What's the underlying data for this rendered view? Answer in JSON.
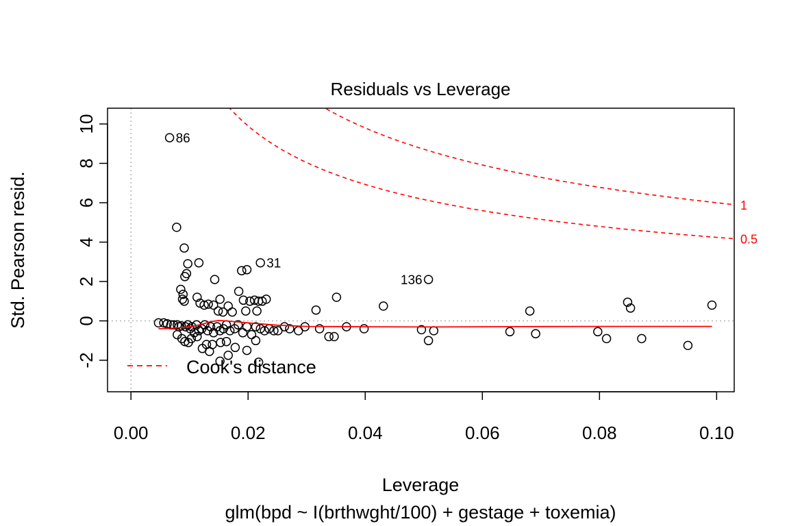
{
  "chart_data": {
    "type": "scatter",
    "title": "Residuals vs Leverage",
    "xlabel": "Leverage",
    "subtitle": "glm(bpd ~ I(brthwght/100) + gestage + toxemia)",
    "ylabel": "Std. Pearson resid.",
    "xlim": [
      -0.004,
      0.103
    ],
    "ylim": [
      -3.6,
      10.8
    ],
    "x_ticks": [
      0.0,
      0.02,
      0.04,
      0.06,
      0.08,
      0.1
    ],
    "x_tick_labels": [
      "0.00",
      "0.02",
      "0.04",
      "0.06",
      "0.08",
      "0.10"
    ],
    "y_ticks": [
      -2,
      0,
      2,
      4,
      6,
      8,
      10
    ],
    "y_tick_labels": [
      "-2",
      "0",
      "2",
      "4",
      "6",
      "8",
      "10"
    ],
    "reference_lines": {
      "x": 0,
      "y": 0
    },
    "points": [
      [
        0.0066,
        9.3
      ],
      [
        0.0078,
        4.75
      ],
      [
        0.0091,
        3.7
      ],
      [
        0.0097,
        2.9
      ],
      [
        0.0116,
        2.95
      ],
      [
        0.0095,
        2.4
      ],
      [
        0.0092,
        2.25
      ],
      [
        0.0143,
        2.1
      ],
      [
        0.0189,
        2.55
      ],
      [
        0.0198,
        2.6
      ],
      [
        0.0221,
        2.95
      ],
      [
        0.0508,
        2.1
      ],
      [
        0.0085,
        1.6
      ],
      [
        0.0089,
        1.35
      ],
      [
        0.0088,
        1.1
      ],
      [
        0.0091,
        1.0
      ],
      [
        0.0113,
        1.2
      ],
      [
        0.0118,
        0.9
      ],
      [
        0.0125,
        0.8
      ],
      [
        0.0132,
        0.85
      ],
      [
        0.0141,
        0.8
      ],
      [
        0.0152,
        1.1
      ],
      [
        0.0166,
        0.75
      ],
      [
        0.0184,
        1.5
      ],
      [
        0.0192,
        1.05
      ],
      [
        0.0203,
        1.0
      ],
      [
        0.0211,
        1.05
      ],
      [
        0.0218,
        1.0
      ],
      [
        0.0224,
        1.0
      ],
      [
        0.0231,
        1.1
      ],
      [
        0.0149,
        0.5
      ],
      [
        0.0157,
        0.45
      ],
      [
        0.0173,
        0.45
      ],
      [
        0.0196,
        0.5
      ],
      [
        0.0215,
        0.5
      ],
      [
        0.0316,
        0.55
      ],
      [
        0.0351,
        1.2
      ],
      [
        0.0431,
        0.75
      ],
      [
        0.0681,
        0.5
      ],
      [
        0.0848,
        0.95
      ],
      [
        0.0853,
        0.65
      ],
      [
        0.0992,
        0.8
      ],
      [
        0.0047,
        -0.1
      ],
      [
        0.0056,
        -0.1
      ],
      [
        0.0062,
        -0.15
      ],
      [
        0.0068,
        -0.2
      ],
      [
        0.0073,
        -0.2
      ],
      [
        0.0079,
        -0.2
      ],
      [
        0.0082,
        -0.3
      ],
      [
        0.0086,
        -0.25
      ],
      [
        0.0093,
        -0.3
      ],
      [
        0.0097,
        -0.2
      ],
      [
        0.0101,
        -0.4
      ],
      [
        0.0104,
        -0.3
      ],
      [
        0.0108,
        -0.6
      ],
      [
        0.0112,
        -0.2
      ],
      [
        0.0116,
        -0.5
      ],
      [
        0.0121,
        -0.4
      ],
      [
        0.0126,
        -0.2
      ],
      [
        0.0131,
        -0.5
      ],
      [
        0.0136,
        -0.3
      ],
      [
        0.0141,
        -0.6
      ],
      [
        0.0147,
        -0.3
      ],
      [
        0.0152,
        -0.5
      ],
      [
        0.0158,
        -0.4
      ],
      [
        0.0163,
        -0.2
      ],
      [
        0.0169,
        -0.5
      ],
      [
        0.0177,
        -0.4
      ],
      [
        0.0183,
        -0.2
      ],
      [
        0.0191,
        -0.6
      ],
      [
        0.0198,
        -0.3
      ],
      [
        0.0206,
        -0.7
      ],
      [
        0.0213,
        -0.3
      ],
      [
        0.0221,
        -0.4
      ],
      [
        0.0228,
        -0.5
      ],
      [
        0.0236,
        -0.4
      ],
      [
        0.0244,
        -0.5
      ],
      [
        0.0251,
        -0.5
      ],
      [
        0.0262,
        -0.3
      ],
      [
        0.0271,
        -0.4
      ],
      [
        0.0286,
        -0.5
      ],
      [
        0.0297,
        -0.3
      ],
      [
        0.0322,
        -0.4
      ],
      [
        0.0338,
        -0.8
      ],
      [
        0.0347,
        -0.8
      ],
      [
        0.0368,
        -0.3
      ],
      [
        0.0398,
        -0.4
      ],
      [
        0.0496,
        -0.45
      ],
      [
        0.0508,
        -1.0
      ],
      [
        0.0517,
        -0.5
      ],
      [
        0.0647,
        -0.55
      ],
      [
        0.0691,
        -0.65
      ],
      [
        0.0797,
        -0.55
      ],
      [
        0.0812,
        -0.9
      ],
      [
        0.0872,
        -0.9
      ],
      [
        0.0951,
        -1.25
      ],
      [
        0.0079,
        -0.7
      ],
      [
        0.0087,
        -0.9
      ],
      [
        0.0092,
        -1.05
      ],
      [
        0.0098,
        -1.1
      ],
      [
        0.0103,
        -0.9
      ],
      [
        0.0113,
        -0.8
      ],
      [
        0.0122,
        -1.4
      ],
      [
        0.0129,
        -1.2
      ],
      [
        0.0134,
        -1.55
      ],
      [
        0.0139,
        -1.2
      ],
      [
        0.0153,
        -1.1
      ],
      [
        0.0163,
        -1.05
      ],
      [
        0.0166,
        -1.75
      ],
      [
        0.0178,
        -1.35
      ],
      [
        0.0198,
        -1.5
      ],
      [
        0.0213,
        -1.0
      ],
      [
        0.0152,
        -2.05
      ],
      [
        0.0218,
        -2.1
      ]
    ],
    "point_labels": [
      {
        "text": "86",
        "x": 0.0066,
        "y": 9.3,
        "side": "right"
      },
      {
        "text": "31",
        "x": 0.0221,
        "y": 2.95,
        "side": "right"
      },
      {
        "text": "136",
        "x": 0.0508,
        "y": 2.1,
        "side": "left"
      }
    ],
    "smooth_line": [
      [
        0.0047,
        -0.4
      ],
      [
        0.007,
        -0.38
      ],
      [
        0.01,
        -0.3
      ],
      [
        0.012,
        -0.18
      ],
      [
        0.0135,
        -0.05
      ],
      [
        0.015,
        0.02
      ],
      [
        0.017,
        -0.02
      ],
      [
        0.02,
        -0.1
      ],
      [
        0.025,
        -0.22
      ],
      [
        0.03,
        -0.28
      ],
      [
        0.04,
        -0.3
      ],
      [
        0.05,
        -0.31
      ],
      [
        0.06,
        -0.3
      ],
      [
        0.07,
        -0.29
      ],
      [
        0.08,
        -0.28
      ],
      [
        0.09,
        -0.28
      ],
      [
        0.0992,
        -0.28
      ]
    ],
    "cook_levels": [
      {
        "level": 0.5,
        "label": "0.5"
      },
      {
        "level": 1,
        "label": "1"
      }
    ],
    "n_params": 4,
    "legend": {
      "label": "Cook's distance",
      "placement": "bottom-left"
    },
    "colors": {
      "points": "#000000",
      "smooth": "#ff0000",
      "cook": "#ff0000",
      "reference": "#b3b3b3"
    }
  }
}
